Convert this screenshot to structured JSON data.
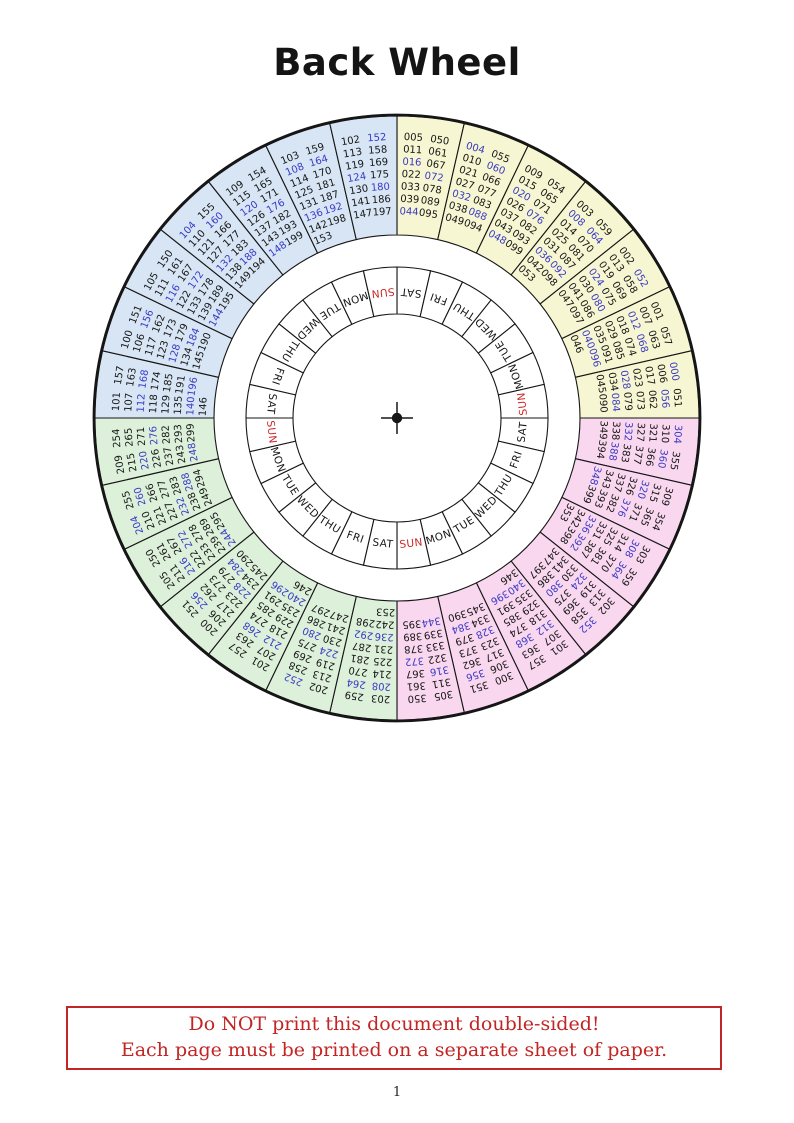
{
  "title": "Back Wheel",
  "warning": {
    "line1": "Do NOT print this document double-sided!",
    "line2": "Each page must be printed on a separate sheet of paper."
  },
  "page_number": "1",
  "colors": {
    "line": "#161616",
    "number": "#161616",
    "leap_blue": "#3a3ac4",
    "sunday_red": "#cc2828",
    "warning_red": "#c32424",
    "day_cell_fill": "#ffffff"
  },
  "wheel": {
    "quadrants": [
      {
        "years": "000-099",
        "fill": "#f6f6d2"
      },
      {
        "years": "300-399",
        "fill": "#f8d7ef"
      },
      {
        "years": "200-299",
        "fill": "#dcf0da"
      },
      {
        "years": "100-199",
        "fill": "#d7e5f5"
      }
    ],
    "leap_highlight": {
      "rule": "year numbers divisible by 4 are printed in blue",
      "exceptions": [
        "100",
        "200",
        "300"
      ],
      "color": "#3a3ac4"
    },
    "day_ring": {
      "sunday_color": "#cc2828",
      "days_clockwise_from_top": [
        "SAT",
        "FRI",
        "THU",
        "WED",
        "TUE",
        "MON",
        "SUN",
        "SAT",
        "FRI",
        "THU",
        "WED",
        "TUE",
        "MON",
        "SUN",
        "SAT",
        "FRI",
        "THU",
        "WED",
        "TUE",
        "MON",
        "SUN",
        "SAT",
        "FRI",
        "THU",
        "WED",
        "TUE",
        "MON",
        "SUN"
      ]
    },
    "sectors_clockwise_from_top": [
      {
        "q": 0,
        "col1": [
          "005",
          "011",
          "016",
          "022",
          "033",
          "039",
          "044"
        ],
        "col2": [
          "050",
          "061",
          "067",
          "072",
          "078",
          "089",
          "095"
        ]
      },
      {
        "q": 0,
        "col1": [
          "004",
          "010",
          "021",
          "027",
          "032",
          "038",
          "049"
        ],
        "col2": [
          "055",
          "060",
          "066",
          "077",
          "083",
          "088",
          "094"
        ]
      },
      {
        "q": 0,
        "col1": [
          "009",
          "015",
          "020",
          "026",
          "037",
          "043",
          "048"
        ],
        "col2": [
          "054",
          "065",
          "071",
          "076",
          "082",
          "093",
          "099"
        ]
      },
      {
        "q": 0,
        "col1": [
          "003",
          "008",
          "014",
          "025",
          "031",
          "036",
          "042",
          "053"
        ],
        "col2": [
          "059",
          "064",
          "070",
          "081",
          "087",
          "092",
          "098"
        ]
      },
      {
        "q": 0,
        "col1": [
          "002",
          "013",
          "019",
          "024",
          "030",
          "041",
          "047"
        ],
        "col2": [
          "052",
          "058",
          "069",
          "075",
          "080",
          "086",
          "097"
        ]
      },
      {
        "q": 0,
        "col1": [
          "001",
          "007",
          "012",
          "018",
          "029",
          "035",
          "040",
          "046"
        ],
        "col2": [
          "057",
          "063",
          "068",
          "074",
          "085",
          "091",
          "096"
        ]
      },
      {
        "q": 0,
        "col1": [
          "000",
          "006",
          "017",
          "023",
          "028",
          "034",
          "045"
        ],
        "col2": [
          "051",
          "056",
          "062",
          "073",
          "079",
          "084",
          "090"
        ]
      },
      {
        "q": 1,
        "col1": [
          "304",
          "310",
          "321",
          "327",
          "332",
          "338",
          "349"
        ],
        "col2": [
          "355",
          "360",
          "366",
          "377",
          "383",
          "388",
          "394"
        ]
      },
      {
        "q": 1,
        "col1": [
          "309",
          "315",
          "320",
          "326",
          "337",
          "343",
          "348"
        ],
        "col2": [
          "354",
          "365",
          "371",
          "376",
          "382",
          "393",
          "399"
        ]
      },
      {
        "q": 1,
        "col1": [
          "303",
          "308",
          "314",
          "325",
          "331",
          "336",
          "342",
          "353"
        ],
        "col2": [
          "359",
          "364",
          "370",
          "381",
          "387",
          "392",
          "398"
        ]
      },
      {
        "q": 1,
        "col1": [
          "302",
          "313",
          "319",
          "324",
          "330",
          "341",
          "347"
        ],
        "col2": [
          "352",
          "358",
          "369",
          "375",
          "380",
          "386",
          "397"
        ]
      },
      {
        "q": 1,
        "col1": [
          "301",
          "307",
          "312",
          "318",
          "329",
          "335",
          "340",
          "346"
        ],
        "col2": [
          "357",
          "363",
          "368",
          "374",
          "385",
          "391",
          "396"
        ]
      },
      {
        "q": 1,
        "col1": [
          "300",
          "306",
          "317",
          "323",
          "328",
          "334",
          "345"
        ],
        "col2": [
          "351",
          "356",
          "362",
          "373",
          "379",
          "384",
          "390"
        ]
      },
      {
        "q": 1,
        "col1": [
          "305",
          "311",
          "316",
          "322",
          "333",
          "339",
          "344"
        ],
        "col2": [
          "350",
          "361",
          "367",
          "372",
          "378",
          "389",
          "395"
        ]
      },
      {
        "q": 2,
        "col1": [
          "203",
          "208",
          "214",
          "225",
          "231",
          "236",
          "242",
          "253"
        ],
        "col2": [
          "259",
          "264",
          "270",
          "281",
          "287",
          "292",
          "298"
        ]
      },
      {
        "q": 2,
        "col1": [
          "202",
          "213",
          "219",
          "224",
          "230",
          "241",
          "247"
        ],
        "col2": [
          "252",
          "258",
          "269",
          "275",
          "280",
          "286",
          "297"
        ]
      },
      {
        "q": 2,
        "col1": [
          "201",
          "207",
          "212",
          "218",
          "229",
          "235",
          "240",
          "246"
        ],
        "col2": [
          "257",
          "263",
          "268",
          "274",
          "285",
          "291",
          "296"
        ]
      },
      {
        "q": 2,
        "col1": [
          "200",
          "206",
          "217",
          "223",
          "228",
          "234",
          "245"
        ],
        "col2": [
          "251",
          "256",
          "262",
          "273",
          "279",
          "284",
          "290"
        ]
      },
      {
        "q": 2,
        "col1": [
          "205",
          "211",
          "216",
          "222",
          "233",
          "239",
          "244"
        ],
        "col2": [
          "250",
          "261",
          "267",
          "272",
          "278",
          "289",
          "295"
        ]
      },
      {
        "q": 2,
        "col1": [
          "204",
          "210",
          "221",
          "227",
          "232",
          "238",
          "249"
        ],
        "col2": [
          "255",
          "260",
          "266",
          "277",
          "283",
          "288",
          "294"
        ]
      },
      {
        "q": 2,
        "col1": [
          "209",
          "215",
          "220",
          "226",
          "237",
          "243",
          "248"
        ],
        "col2": [
          "254",
          "265",
          "271",
          "276",
          "282",
          "293",
          "299"
        ]
      },
      {
        "q": 3,
        "col1": [
          "101",
          "107",
          "112",
          "118",
          "129",
          "135",
          "140",
          "146"
        ],
        "col2": [
          "157",
          "163",
          "168",
          "174",
          "185",
          "191",
          "196"
        ]
      },
      {
        "q": 3,
        "col1": [
          "100",
          "106",
          "117",
          "123",
          "128",
          "134",
          "145"
        ],
        "col2": [
          "151",
          "156",
          "162",
          "173",
          "179",
          "184",
          "190"
        ]
      },
      {
        "q": 3,
        "col1": [
          "105",
          "111",
          "116",
          "122",
          "133",
          "139",
          "144"
        ],
        "col2": [
          "150",
          "161",
          "167",
          "172",
          "178",
          "189",
          "195"
        ]
      },
      {
        "q": 3,
        "col1": [
          "104",
          "110",
          "121",
          "127",
          "132",
          "138",
          "149"
        ],
        "col2": [
          "155",
          "160",
          "166",
          "177",
          "183",
          "188",
          "194"
        ]
      },
      {
        "q": 3,
        "col1": [
          "109",
          "115",
          "120",
          "126",
          "137",
          "143",
          "148"
        ],
        "col2": [
          "154",
          "165",
          "171",
          "176",
          "182",
          "193",
          "199"
        ]
      },
      {
        "q": 3,
        "col1": [
          "103",
          "108",
          "114",
          "125",
          "131",
          "136",
          "142",
          "153"
        ],
        "col2": [
          "159",
          "164",
          "170",
          "181",
          "187",
          "192",
          "198"
        ]
      },
      {
        "q": 3,
        "col1": [
          "102",
          "113",
          "119",
          "124",
          "130",
          "141",
          "147"
        ],
        "col2": [
          "152",
          "158",
          "169",
          "175",
          "180",
          "186",
          "197"
        ]
      }
    ]
  }
}
